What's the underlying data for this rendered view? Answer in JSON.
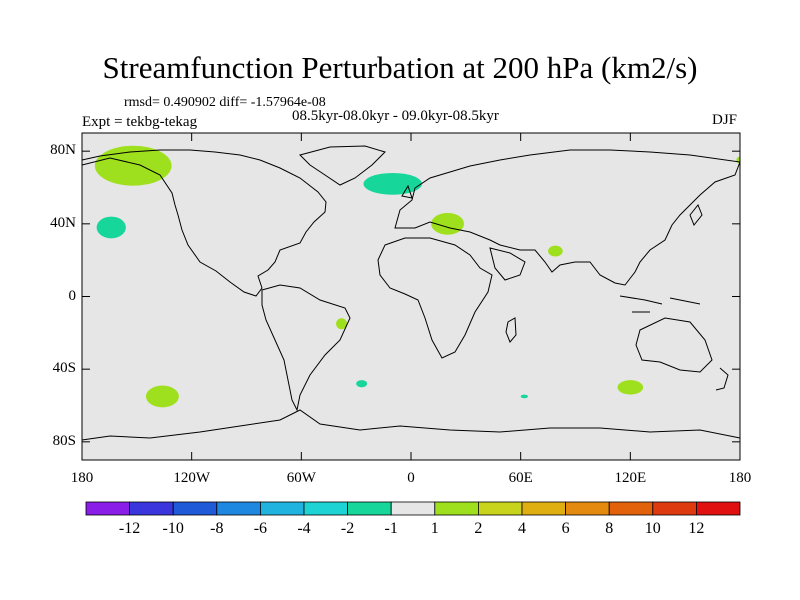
{
  "chart_data": {
    "type": "heatmap",
    "title": "Streamfunction Perturbation at 200 hPa (km2/s)",
    "header": {
      "stats": "rmsd= 0.490902 diff= -1.57964e-08",
      "periods": "08.5kyr-08.0kyr - 09.0kyr-08.5kyr",
      "experiment": "Expt = tekbg-tekag",
      "season": "DJF"
    },
    "xlim": [
      -180,
      180
    ],
    "ylim": [
      -90,
      90
    ],
    "x_ticks": [
      {
        "value": -180,
        "label": "180"
      },
      {
        "value": -120,
        "label": "120W"
      },
      {
        "value": -60,
        "label": "60W"
      },
      {
        "value": 0,
        "label": "0"
      },
      {
        "value": 60,
        "label": "60E"
      },
      {
        "value": 120,
        "label": "120E"
      },
      {
        "value": 180,
        "label": "180"
      }
    ],
    "y_ticks": [
      {
        "value": 80,
        "label": "80N"
      },
      {
        "value": 40,
        "label": "40N"
      },
      {
        "value": 0,
        "label": "0"
      },
      {
        "value": -40,
        "label": "40S"
      },
      {
        "value": -80,
        "label": "80S"
      }
    ],
    "colorbar": {
      "colors": [
        "#8a1ee8",
        "#3a35dc",
        "#1f5bd9",
        "#1e88e0",
        "#20b3e0",
        "#1ed3d3",
        "#16d69a",
        "#e6e6e6",
        "#9fe01e",
        "#c8d41c",
        "#dfae10",
        "#e48a0e",
        "#e2620c",
        "#dd3a10",
        "#e01010"
      ],
      "labels": [
        "-12",
        "-10",
        "-8",
        "-6",
        "-4",
        "-2",
        "-1",
        "1",
        "2",
        "4",
        "6",
        "8",
        "10",
        "12"
      ]
    },
    "anomalies": [
      {
        "name": "north-pacific-positive",
        "lon": -152,
        "lat": 72,
        "dlon": 21,
        "dlat": 11,
        "level": 2
      },
      {
        "name": "north-atlantic-negative",
        "lon": -10,
        "lat": 62,
        "dlon": 16,
        "dlat": 6,
        "level": -1
      },
      {
        "name": "northeast-pacific-negative",
        "lon": -164,
        "lat": 38,
        "dlon": 8,
        "dlat": 6,
        "level": -1
      },
      {
        "name": "mediterranean-positive",
        "lon": 20,
        "lat": 40,
        "dlon": 9,
        "dlat": 6,
        "level": 2
      },
      {
        "name": "india-positive",
        "lon": 79,
        "lat": 25,
        "dlon": 4,
        "dlat": 3,
        "level": 2
      },
      {
        "name": "brazil-positive",
        "lon": -38,
        "lat": -15,
        "dlon": 3,
        "dlat": 3,
        "level": 2
      },
      {
        "name": "south-pacific-positive",
        "lon": -136,
        "lat": -55,
        "dlon": 9,
        "dlat": 6,
        "level": 2
      },
      {
        "name": "south-atlantic-negative",
        "lon": -27,
        "lat": -48,
        "dlon": 3,
        "dlat": 2,
        "level": -1
      },
      {
        "name": "indian-ocean-negative",
        "lon": 62,
        "lat": -55,
        "dlon": 2,
        "dlat": 1,
        "level": -1
      },
      {
        "name": "southeast-indian-positive",
        "lon": 120,
        "lat": -50,
        "dlon": 7,
        "dlat": 4,
        "level": 2
      },
      {
        "name": "dateline-arctic-positive",
        "lon": 180,
        "lat": 75,
        "dlon": 2,
        "dlat": 2,
        "level": 2
      }
    ]
  }
}
